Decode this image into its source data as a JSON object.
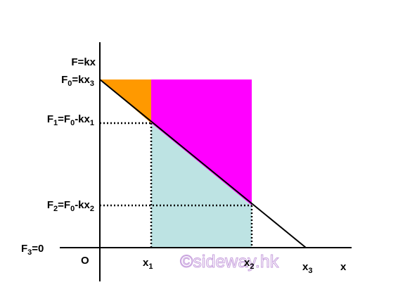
{
  "axis_label_y": [
    "F=kx"
  ],
  "axis_label_x": [
    "x"
  ],
  "origin": [
    "O"
  ],
  "y_labels": [
    [
      "F",
      "0",
      "=kx",
      "3"
    ],
    [
      "F",
      "1",
      "=F",
      "0",
      "-kx",
      "1"
    ],
    [
      "F",
      "2",
      "=F",
      "0",
      "-kx",
      "2"
    ],
    [
      "F",
      "3",
      "=0"
    ]
  ],
  "x_labels": [
    [
      "x",
      "1"
    ],
    [
      "x",
      "2"
    ],
    [
      "x",
      "3"
    ]
  ],
  "watermark": "©sideway.hk"
}
